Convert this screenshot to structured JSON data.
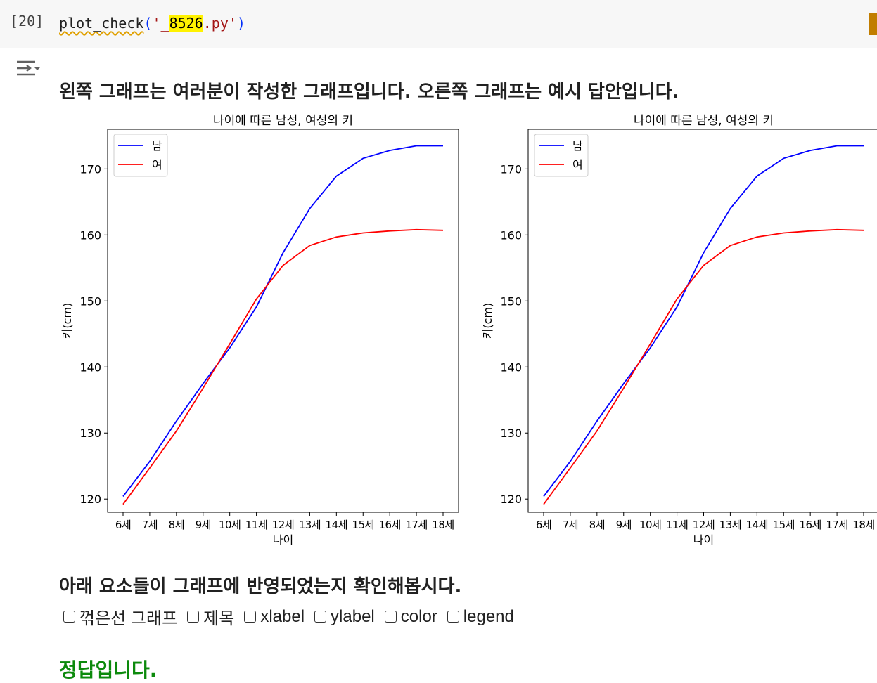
{
  "cell": {
    "exec_count": "[20]",
    "code_fn": "plot_check",
    "code_paren_open": "(",
    "code_quote_open": "'",
    "code_prefix": "_",
    "code_highlight": "8526",
    "code_suffix": ".py",
    "code_quote_close": "'",
    "code_paren_close": ")"
  },
  "output": {
    "heading": "왼쪽 그래프는 여러분이 작성한 그래프입니다. 오른쪽 그래프는 예시 답안입니다.",
    "subheading": "아래 요소들이 그래프에 반영되었는지 확인해봅시다.",
    "checklist": [
      "꺾은선 그래프",
      "제목",
      "xlabel",
      "ylabel",
      "color",
      "legend"
    ],
    "result": "정답입니다."
  },
  "chart_data": [
    {
      "type": "line",
      "title": "나이에 따른 남성, 여성의 키",
      "xlabel": "나이",
      "ylabel": "키(cm)",
      "categories": [
        "6세",
        "7세",
        "8세",
        "9세",
        "10세",
        "11세",
        "12세",
        "13세",
        "14세",
        "15세",
        "16세",
        "17세",
        "18세"
      ],
      "ylim": [
        118,
        176
      ],
      "yticks": [
        120,
        130,
        140,
        150,
        160,
        170
      ],
      "legend": "upper left",
      "series": [
        {
          "name": "남",
          "color": "#0000ff",
          "values": [
            120.4,
            125.7,
            131.8,
            137.5,
            142.9,
            149.1,
            157.3,
            164.0,
            168.9,
            171.6,
            172.8,
            173.5,
            173.5
          ]
        },
        {
          "name": "여",
          "color": "#ff0000",
          "values": [
            119.2,
            124.7,
            130.3,
            136.8,
            143.5,
            150.3,
            155.4,
            158.4,
            159.7,
            160.3,
            160.6,
            160.8,
            160.7
          ]
        }
      ]
    },
    {
      "type": "line",
      "title": "나이에 따른 남성, 여성의 키",
      "xlabel": "나이",
      "ylabel": "키(cm)",
      "categories": [
        "6세",
        "7세",
        "8세",
        "9세",
        "10세",
        "11세",
        "12세",
        "13세",
        "14세",
        "15세",
        "16세",
        "17세",
        "18세"
      ],
      "ylim": [
        118,
        176
      ],
      "yticks": [
        120,
        130,
        140,
        150,
        160,
        170
      ],
      "legend": "upper left",
      "series": [
        {
          "name": "남",
          "color": "#0000ff",
          "values": [
            120.4,
            125.7,
            131.8,
            137.5,
            142.9,
            149.1,
            157.3,
            164.0,
            168.9,
            171.6,
            172.8,
            173.5,
            173.5
          ]
        },
        {
          "name": "여",
          "color": "#ff0000",
          "values": [
            119.2,
            124.7,
            130.3,
            136.8,
            143.5,
            150.3,
            155.4,
            158.4,
            159.7,
            160.3,
            160.6,
            160.8,
            160.7
          ]
        }
      ]
    }
  ]
}
